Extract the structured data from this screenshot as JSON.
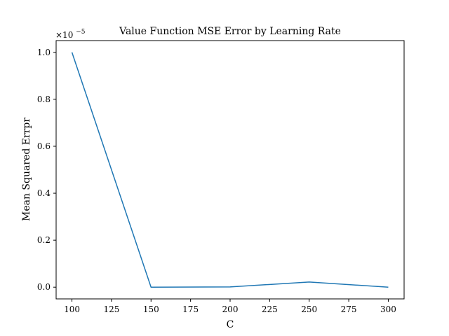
{
  "chart_data": {
    "type": "line",
    "title": "Value Function MSE Error by Learning Rate",
    "xlabel": "C",
    "ylabel": "Mean Squared Errpr",
    "y_offset_label": "×10",
    "y_offset_exponent": "−5",
    "x_ticks": [
      100,
      125,
      150,
      175,
      200,
      225,
      250,
      275,
      300
    ],
    "y_ticks": [
      0.0,
      0.2,
      0.4,
      0.6,
      0.8,
      1.0
    ],
    "xlim": [
      90,
      310
    ],
    "ylim": [
      -0.05,
      1.05
    ],
    "grid": false,
    "series": [
      {
        "color": "#1f77b4",
        "x": [
          100,
          150,
          200,
          250,
          300
        ],
        "y": [
          1.0,
          0.0,
          0.001,
          0.022,
          0.0
        ]
      }
    ]
  }
}
